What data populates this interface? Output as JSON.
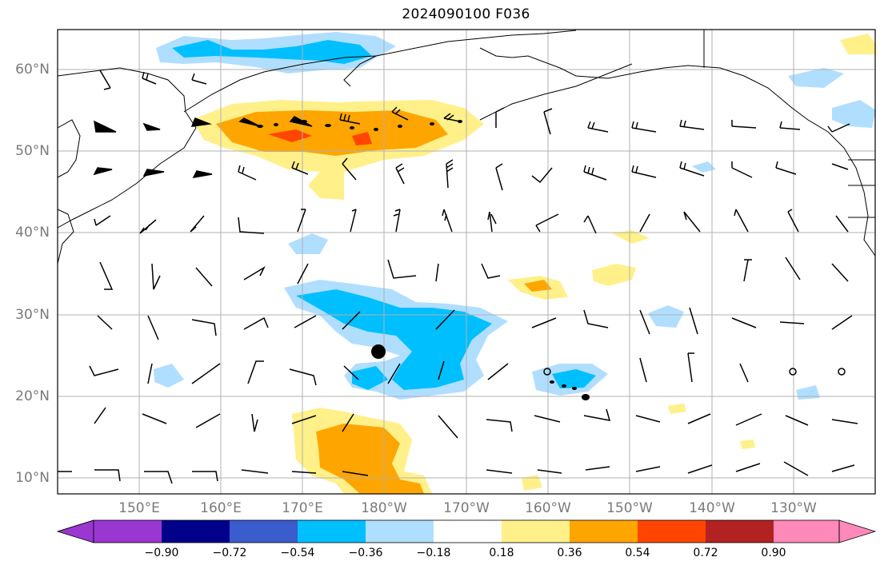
{
  "title": "2024090100 F036",
  "lat_labels": [
    "60°N",
    "50°N",
    "40°N",
    "30°N",
    "20°N",
    "10°N"
  ],
  "lon_labels": [
    "150°E",
    "160°E",
    "170°E",
    "180°W",
    "170°W",
    "160°W",
    "150°W",
    "140°W",
    "130°W"
  ],
  "colorbar": {
    "tick_labels": [
      "−0.90",
      "−0.72",
      "−0.54",
      "−0.36",
      "−0.18",
      "0.18",
      "0.36",
      "0.54",
      "0.72",
      "0.90"
    ],
    "colors": [
      "#9a37d0",
      "#00008b",
      "#3a5ccc",
      "#00bfff",
      "#b0deff",
      "#ffffff",
      "#fff08a",
      "#ffa500",
      "#ff4500",
      "#b22222",
      "#ff8ab9"
    ]
  },
  "colors": {
    "frame": "#000000",
    "grid": "#b0b0b0",
    "coast": "#000000"
  }
}
